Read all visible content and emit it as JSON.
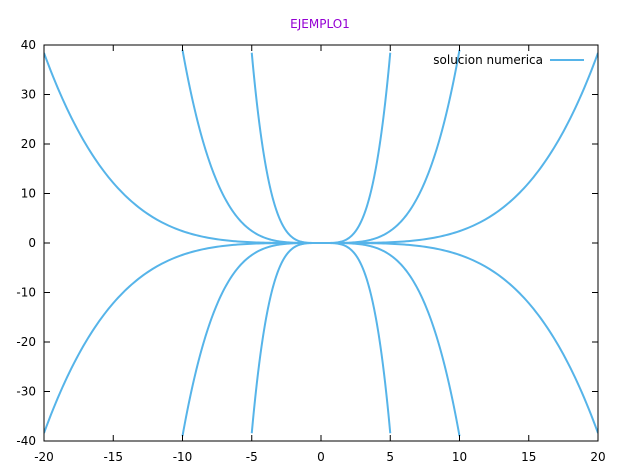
{
  "chart_data": {
    "type": "line",
    "title": "EJEMPLO1",
    "xlabel": "",
    "ylabel": "",
    "xlim": [
      -20,
      20
    ],
    "ylim": [
      -40,
      40
    ],
    "x_ticks": [
      -20,
      -15,
      -10,
      -5,
      0,
      5,
      10,
      15,
      20
    ],
    "x_tick_labels": [
      "-20",
      "-15",
      "-10",
      "-5",
      "0",
      "5",
      "10",
      "15",
      "20"
    ],
    "y_ticks": [
      -40,
      -30,
      -20,
      -10,
      0,
      10,
      20,
      30,
      40
    ],
    "y_tick_labels": [
      "-40",
      "-30",
      "-20",
      "-10",
      "0",
      "10",
      "20",
      "30",
      "40"
    ],
    "grid": false,
    "legend": {
      "position": "top-right",
      "entries": [
        "solucion numerica"
      ]
    },
    "series": [
      {
        "name": "solucion numerica",
        "color": "#56b4e9",
        "curves": [
          {
            "form": "c*x^4",
            "c": 0.00024,
            "x_range": [
              -20,
              20
            ]
          },
          {
            "form": "c*x^4",
            "c": -0.00024,
            "x_range": [
              -20,
              20
            ]
          },
          {
            "form": "c*x^4",
            "c": 0.0039,
            "x_range": [
              -10,
              10
            ]
          },
          {
            "form": "c*x^4",
            "c": -0.0039,
            "x_range": [
              -10,
              10
            ]
          },
          {
            "form": "c*x^4",
            "c": 0.0615,
            "x_range": [
              -5,
              5
            ]
          },
          {
            "form": "c*x^4",
            "c": -0.0615,
            "x_range": [
              -5,
              5
            ]
          }
        ]
      }
    ]
  },
  "colors": {
    "title": "#9400d3",
    "axis": "#000000",
    "series": "#56b4e9"
  }
}
